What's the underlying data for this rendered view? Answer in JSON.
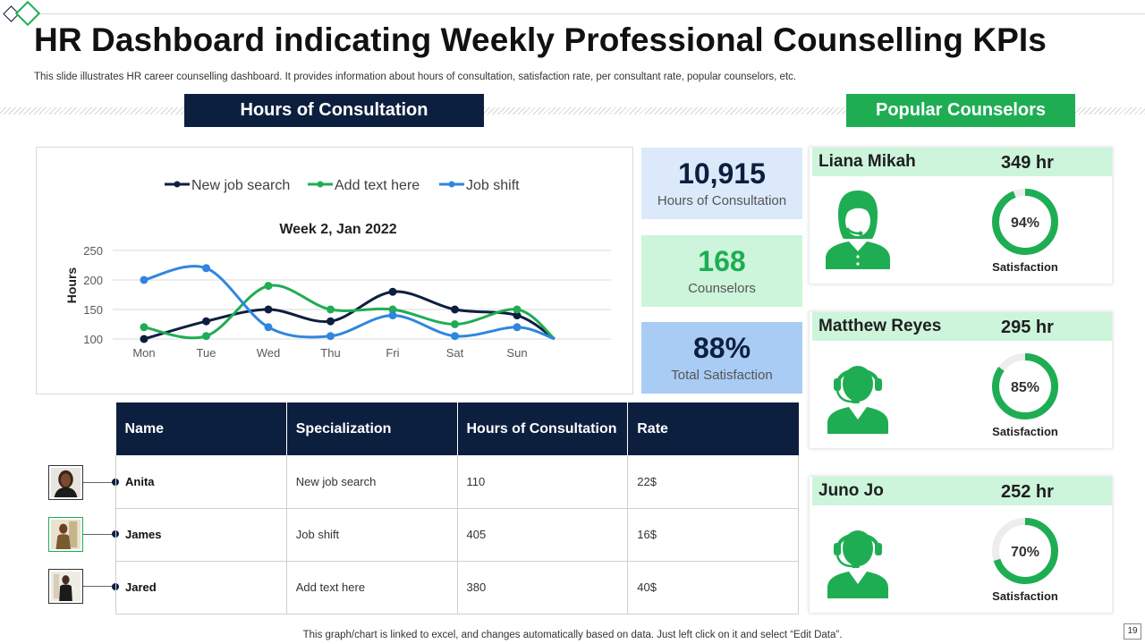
{
  "header": {
    "title": "HR Dashboard indicating Weekly Professional Counselling KPIs",
    "subtitle": "This slide illustrates HR career counselling dashboard. It provides information about hours of consultation, satisfaction rate, per consultant rate, popular counselors, etc."
  },
  "sections": {
    "hours": "Hours of Consultation",
    "popular": "Popular Counselors"
  },
  "chart_data": {
    "type": "line",
    "title": "Week 2, Jan 2022",
    "ylabel": "Hours",
    "xlabel": "",
    "categories": [
      "Mon",
      "Tue",
      "Wed",
      "Thu",
      "Fri",
      "Sat",
      "Sun"
    ],
    "ylim": [
      100,
      250
    ],
    "yticks": [
      100,
      150,
      200,
      250
    ],
    "series": [
      {
        "name": "New job search",
        "color": "#0d1f3f",
        "values": [
          100,
          130,
          150,
          130,
          180,
          150,
          140
        ]
      },
      {
        "name": "Add text here",
        "color": "#1fad54",
        "values": [
          120,
          105,
          190,
          150,
          150,
          125,
          150
        ]
      },
      {
        "name": "Job shift",
        "color": "#2f86de",
        "values": [
          200,
          220,
          120,
          105,
          140,
          105,
          120
        ]
      }
    ]
  },
  "kpis": [
    {
      "value": "10,915",
      "label": "Hours of Consultation"
    },
    {
      "value": "168",
      "label": "Counselors"
    },
    {
      "value": "88%",
      "label": "Total Satisfaction"
    }
  ],
  "counselors": [
    {
      "name": "Liana Mikah",
      "hours": "349 hr",
      "pct_text": "94%",
      "pct": 94,
      "label": "Satisfaction",
      "icon": "female-support-agent-icon"
    },
    {
      "name": "Matthew Reyes",
      "hours": "295 hr",
      "pct_text": "85%",
      "pct": 85,
      "label": "Satisfaction",
      "icon": "headset-agent-icon"
    },
    {
      "name": "Juno Jo",
      "hours": "252 hr",
      "pct_text": "70%",
      "pct": 70,
      "label": "Satisfaction",
      "icon": "headset-agent-icon"
    }
  ],
  "table": {
    "headers": [
      "Name",
      "Specialization",
      "Hours of Consultation",
      "Rate"
    ],
    "rows": [
      {
        "name": "Anita",
        "specialization": "New job search",
        "hours": "110",
        "rate": "22$"
      },
      {
        "name": "James",
        "specialization": "Job shift",
        "hours": "405",
        "rate": "16$"
      },
      {
        "name": "Jared",
        "specialization": "Add text here",
        "hours": "380",
        "rate": "40$"
      }
    ]
  },
  "footer": {
    "note": "This graph/chart is linked to excel, and changes automatically based on data. Just left click on it and select “Edit Data”.",
    "page": "19"
  },
  "colors": {
    "navy": "#0d1f3f",
    "green": "#1fad54",
    "light_green": "#ccf5dc",
    "light_blue": "#dbe9fb",
    "blue": "#a9ccf5"
  }
}
